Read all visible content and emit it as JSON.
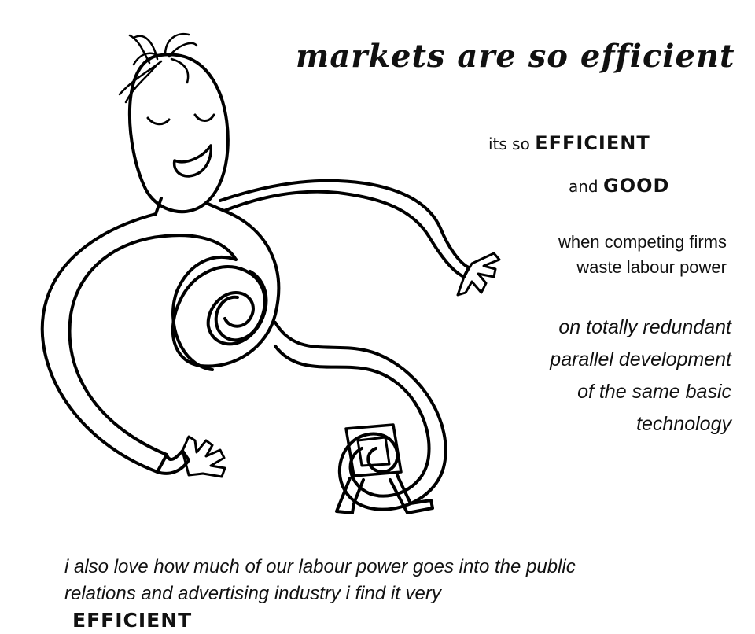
{
  "title": "markets are so efficient",
  "line1": {
    "prefix": "its so",
    "emphasis": "EFFICIENT"
  },
  "line2": {
    "prefix": "and",
    "emphasis": "GOOD"
  },
  "para1": [
    "when competing firms",
    "waste labour power"
  ],
  "para2": [
    "on totally redundant",
    "parallel development",
    "of the same basic",
    "technology"
  ],
  "bottom": {
    "line1": "i also love how much of our labour power goes into the public",
    "line2": "relations and advertising  industry i find it very",
    "emphasis": "EFFICIENT"
  }
}
